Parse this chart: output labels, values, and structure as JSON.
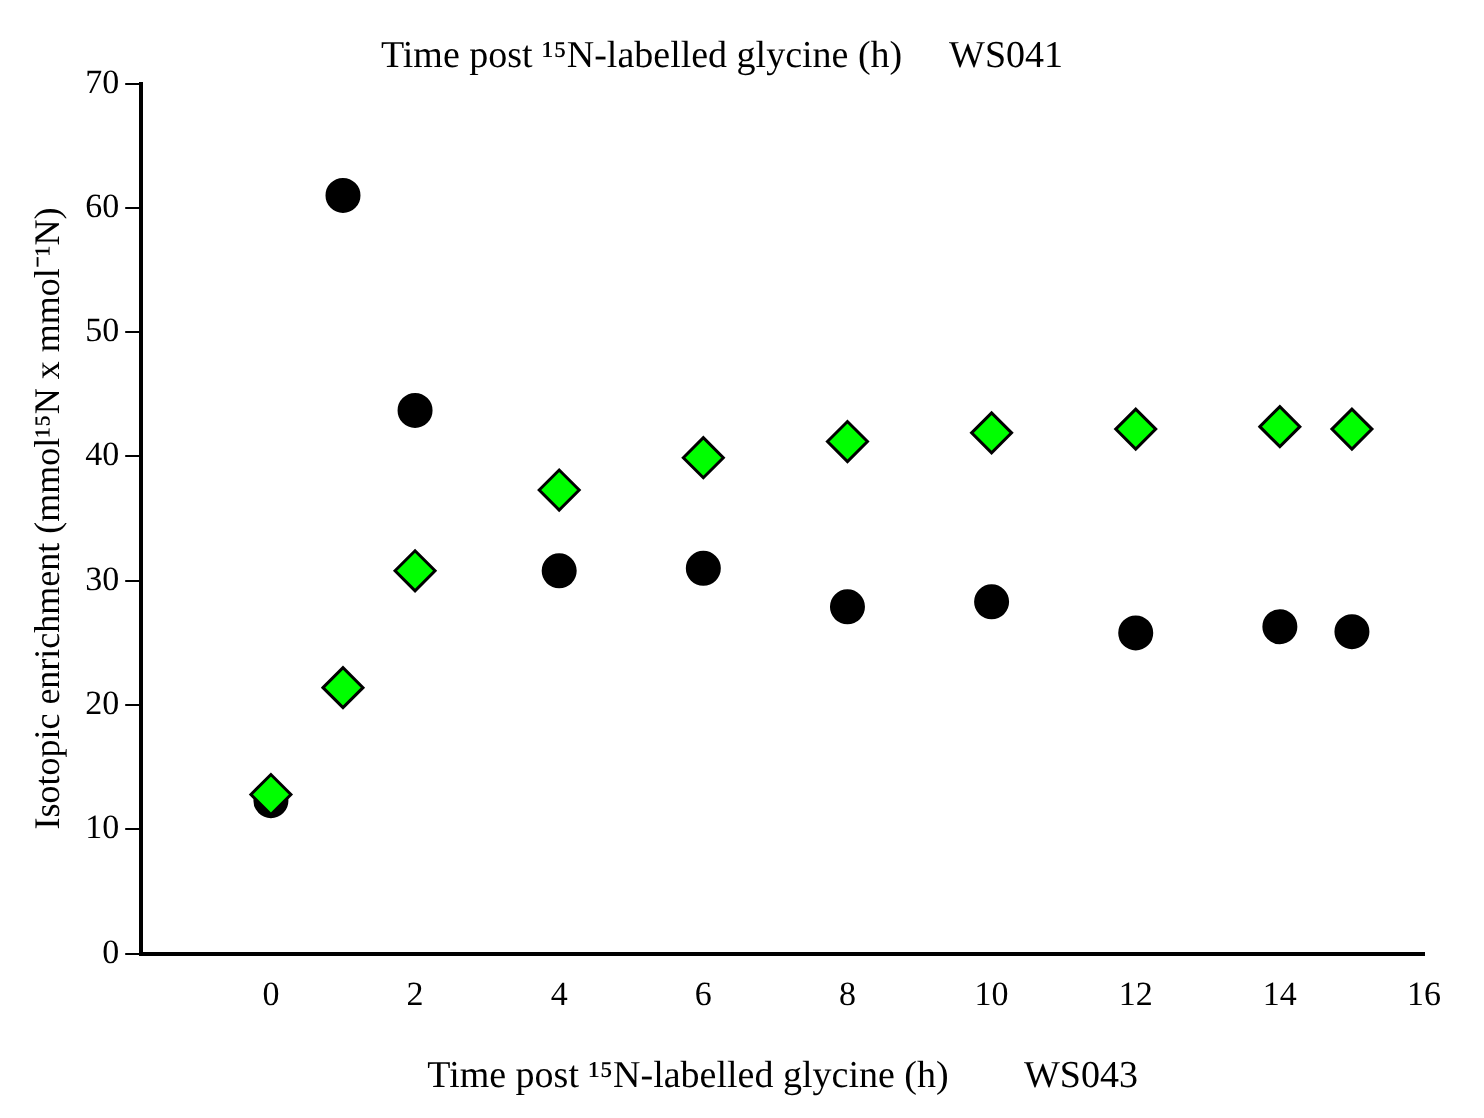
{
  "chart_data": {
    "type": "scatter",
    "title": "Time post ¹⁵N-labelled glycine (h)     WS041",
    "xlabel": "Time post ¹⁵N-labelled glycine (h)        WS043",
    "ylabel": "Isotopic enrichment (mmol¹⁵N x mmol⁻¹N)",
    "x": [
      0,
      1,
      2,
      4,
      6,
      8,
      10,
      12,
      14,
      15
    ],
    "series": [
      {
        "color": "#000000",
        "marker": "circle",
        "values": [
          12.3,
          61.0,
          43.7,
          30.8,
          31.0,
          27.9,
          28.3,
          25.8,
          26.3,
          25.9
        ]
      },
      {
        "color": "#00ff00",
        "marker": "diamond",
        "values": [
          12.8,
          21.4,
          30.8,
          37.3,
          39.9,
          41.2,
          41.9,
          42.2,
          42.4,
          42.2
        ]
      }
    ],
    "xlim": [
      -1.8,
      16
    ],
    "xticks": [
      0,
      2,
      4,
      6,
      8,
      10,
      12,
      14,
      16
    ],
    "ylim": [
      0,
      70
    ],
    "yticks": [
      0,
      10,
      20,
      30,
      40,
      50,
      60,
      70
    ],
    "grid": false,
    "legend": false
  }
}
